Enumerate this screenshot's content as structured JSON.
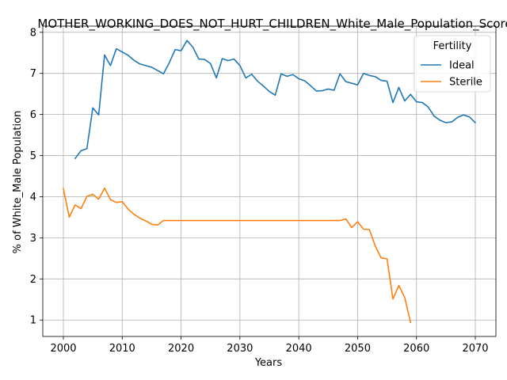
{
  "chart_data": {
    "type": "line",
    "title": "MOTHER_WORKING_DOES_NOT_HURT_CHILDREN_White_Male_Population_Score",
    "xlabel": "Years",
    "ylabel": "% of White_Male Population",
    "xlim": [
      1996.5,
      2073.5
    ],
    "ylim": [
      0.6,
      8.15
    ],
    "xticks": [
      2000,
      2010,
      2020,
      2030,
      2040,
      2050,
      2060,
      2070
    ],
    "yticks": [
      1,
      2,
      3,
      4,
      5,
      6,
      7,
      8
    ],
    "grid": true,
    "legend": {
      "title": "Fertility",
      "placement": "top-right"
    },
    "series": [
      {
        "name": "Ideal",
        "color": "#1f77b4",
        "x": [
          2002,
          2003,
          2004,
          2005,
          2006,
          2007,
          2008,
          2009,
          2010,
          2011,
          2012,
          2013,
          2014,
          2015,
          2016,
          2017,
          2018,
          2019,
          2020,
          2021,
          2022,
          2023,
          2024,
          2025,
          2026,
          2027,
          2028,
          2029,
          2030,
          2031,
          2032,
          2033,
          2034,
          2035,
          2036,
          2037,
          2038,
          2039,
          2040,
          2041,
          2042,
          2043,
          2044,
          2045,
          2046,
          2047,
          2048,
          2049,
          2050,
          2051,
          2052,
          2053,
          2054,
          2055,
          2056,
          2057,
          2058,
          2059,
          2060,
          2061,
          2062,
          2063,
          2064,
          2065,
          2066,
          2067,
          2068,
          2069,
          2070
        ],
        "values": [
          4.93,
          5.12,
          5.17,
          6.16,
          5.99,
          7.45,
          7.19,
          7.6,
          7.52,
          7.44,
          7.32,
          7.23,
          7.19,
          7.15,
          7.07,
          6.99,
          7.26,
          7.58,
          7.55,
          7.8,
          7.64,
          7.35,
          7.34,
          7.24,
          6.89,
          7.36,
          7.31,
          7.35,
          7.19,
          6.89,
          6.98,
          6.81,
          6.69,
          6.56,
          6.47,
          6.99,
          6.93,
          6.97,
          6.87,
          6.82,
          6.7,
          6.57,
          6.58,
          6.62,
          6.59,
          6.99,
          6.8,
          6.76,
          6.72,
          7.0,
          6.95,
          6.92,
          6.83,
          6.81,
          6.29,
          6.66,
          6.33,
          6.49,
          6.31,
          6.29,
          6.18,
          5.96,
          5.86,
          5.8,
          5.82,
          5.93,
          5.99,
          5.94,
          5.8
        ]
      },
      {
        "name": "Sterile",
        "color": "#ff7f0e",
        "x": [
          2000,
          2001,
          2002,
          2003,
          2004,
          2005,
          2006,
          2007,
          2008,
          2009,
          2010,
          2011,
          2012,
          2013,
          2014,
          2015,
          2016,
          2017,
          2018,
          2019,
          2020,
          2021,
          2022,
          2023,
          2024,
          2025,
          2026,
          2027,
          2028,
          2029,
          2030,
          2031,
          2032,
          2033,
          2034,
          2035,
          2036,
          2037,
          2038,
          2039,
          2040,
          2041,
          2042,
          2043,
          2044,
          2045,
          2046,
          2047,
          2048,
          2049,
          2050,
          2051,
          2052,
          2053,
          2054,
          2055,
          2056,
          2057,
          2058,
          2059
        ],
        "values": [
          4.2,
          3.5,
          3.8,
          3.71,
          4.01,
          4.06,
          3.94,
          4.21,
          3.93,
          3.86,
          3.88,
          3.7,
          3.57,
          3.48,
          3.41,
          3.33,
          3.31,
          3.42,
          3.42,
          3.42,
          3.42,
          3.42,
          3.42,
          3.42,
          3.42,
          3.42,
          3.42,
          3.42,
          3.42,
          3.42,
          3.42,
          3.42,
          3.42,
          3.42,
          3.42,
          3.42,
          3.42,
          3.42,
          3.42,
          3.42,
          3.42,
          3.42,
          3.42,
          3.42,
          3.42,
          3.42,
          3.42,
          3.42,
          3.46,
          3.25,
          3.39,
          3.21,
          3.2,
          2.8,
          2.51,
          2.49,
          1.51,
          1.84,
          1.55,
          0.94
        ]
      }
    ]
  }
}
